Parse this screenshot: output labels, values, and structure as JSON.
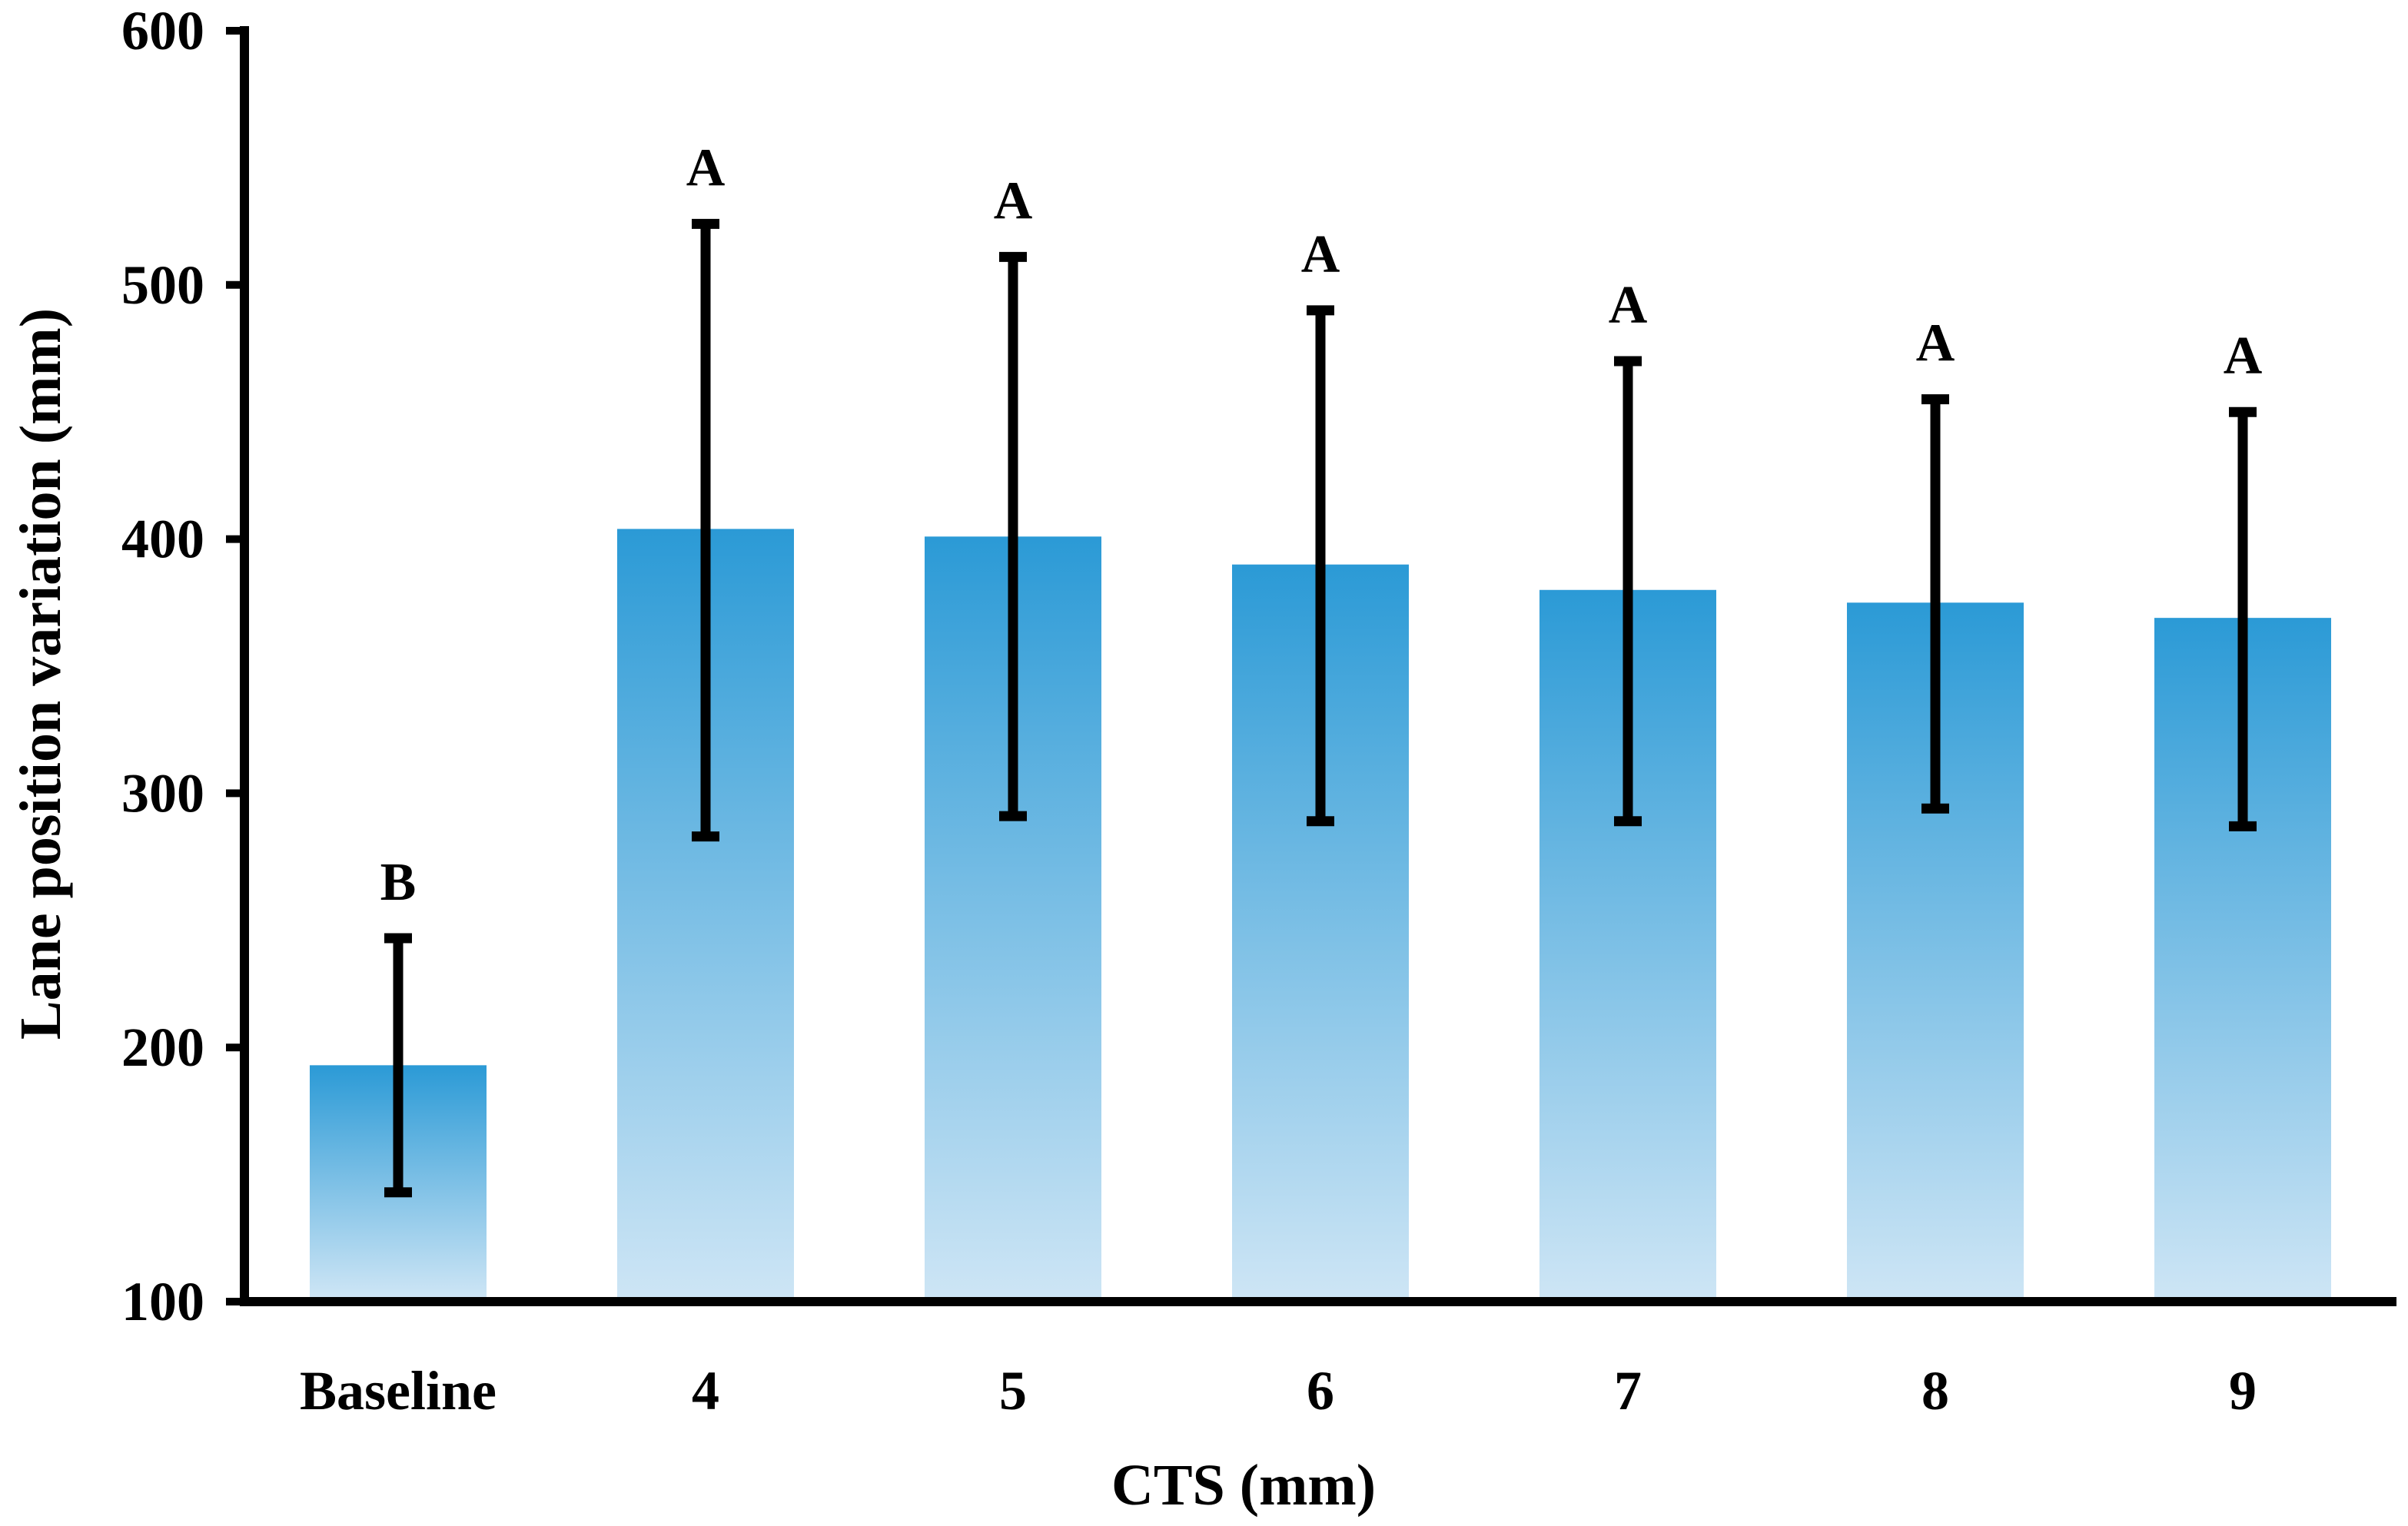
{
  "chart_data": {
    "type": "bar",
    "title": "",
    "xlabel": "CTS (mm)",
    "ylabel": "Lane position variation (mm)",
    "ylim": [
      100,
      600
    ],
    "yticks": [
      100,
      200,
      300,
      400,
      500,
      600
    ],
    "ytick_labels": [
      "100",
      "200",
      "300",
      "400",
      "500",
      "600"
    ],
    "categories": [
      "Baseline",
      "4",
      "5",
      "6",
      "7",
      "8",
      "9"
    ],
    "values": [
      193,
      404,
      401,
      390,
      380,
      375,
      369
    ],
    "error_low": [
      143,
      283,
      291,
      289,
      289,
      294,
      287
    ],
    "error_high": [
      243,
      524,
      511,
      490,
      470,
      455,
      450
    ],
    "significance_letters": [
      "B",
      "A",
      "A",
      "A",
      "A",
      "A",
      "A"
    ],
    "grid": false,
    "colors": {
      "bar_top": "#2b9ad6",
      "bar_bottom": "#cde5f5",
      "axis": "#000000",
      "error_bar": "#000000"
    }
  }
}
